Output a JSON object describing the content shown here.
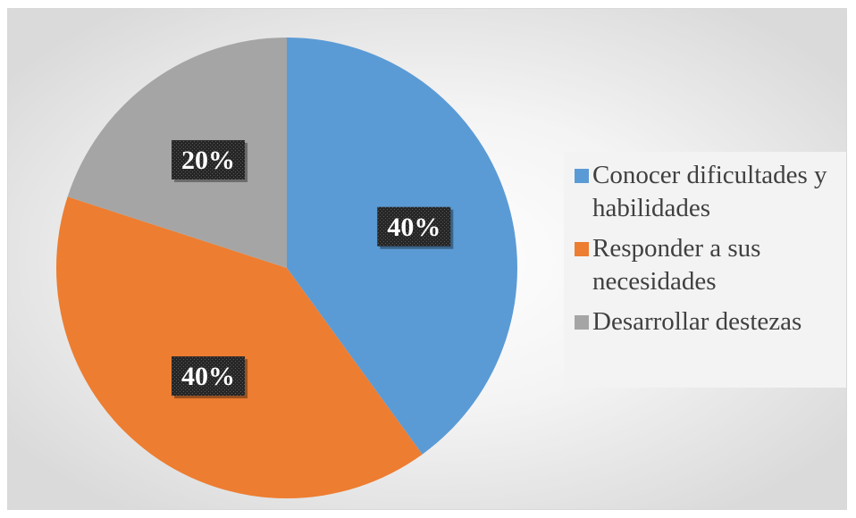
{
  "chart_data": {
    "type": "pie",
    "title": "",
    "categories": [
      "Conocer dificultades y habilidades",
      "Responder a sus necesidades",
      "Desarrollar destezas"
    ],
    "values": [
      40,
      40,
      20
    ],
    "labels": [
      "40%",
      "40%",
      "20%"
    ],
    "colors": [
      "#5b9bd5",
      "#ed7d31",
      "#a5a5a5"
    ],
    "start_angle_deg": 0,
    "direction": "clockwise",
    "legend": {
      "placement": "right",
      "entries": [
        "Conocer dificultades y habilidades",
        "Responder a sus necesidades",
        "Desarrollar destezas"
      ]
    },
    "data_label_style": "white bold text on dark patterned boxes"
  }
}
